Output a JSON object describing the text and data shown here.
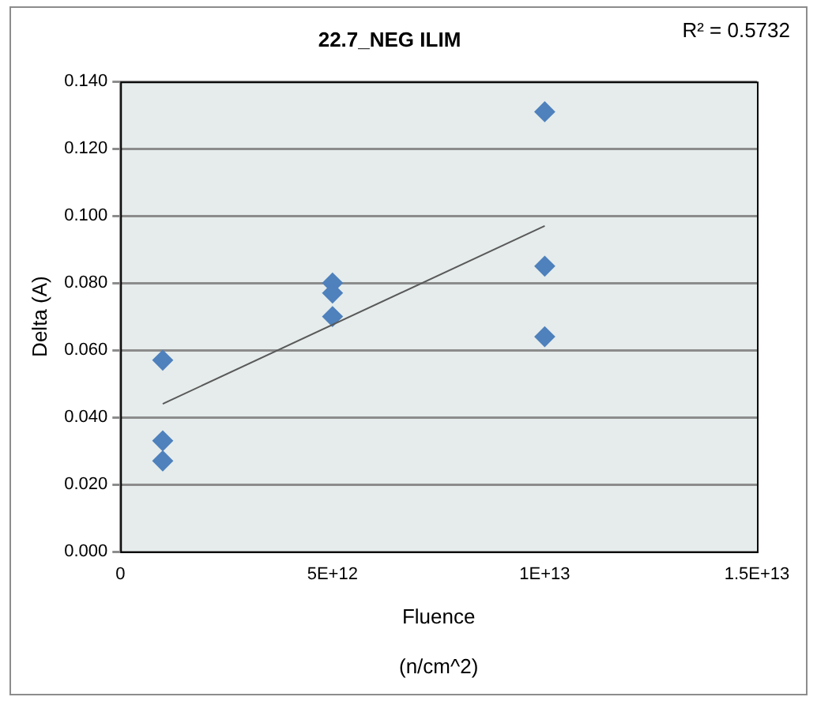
{
  "chart_data": {
    "type": "scatter",
    "title": "22.7_NEG ILIM",
    "xlabel": "Fluence\n\n(n/cm^2)",
    "ylabel": "Delta (A)",
    "annotations": [
      "R² = 0.5732"
    ],
    "x": [
      1000000000000.0,
      1000000000000.0,
      1000000000000.0,
      5000000000000.0,
      5000000000000.0,
      5000000000000.0,
      10000000000000.0,
      10000000000000.0,
      10000000000000.0
    ],
    "series": [
      {
        "color": "#4f81bd",
        "values": [
          0.057,
          0.033,
          0.027,
          0.08,
          0.077,
          0.07,
          0.131,
          0.085,
          0.064
        ]
      },
      {
        "type": "line",
        "color": "#595959",
        "marker": "none",
        "x": [
          1000000000000.0,
          10000000000000.0
        ],
        "values": [
          0.044,
          0.097
        ]
      }
    ],
    "xlim": [
      0,
      15000000000000.0
    ],
    "xticks": [
      0,
      {
        "value": 5000000000000.0,
        "label": "5E+12"
      },
      {
        "value": 10000000000000.0,
        "label": "1E+13"
      },
      {
        "value": 15000000000000.0,
        "label": "1.5E+13"
      }
    ],
    "ylim": [
      0,
      0.14
    ],
    "yticks": [
      {
        "value": 0,
        "label": "0.000"
      },
      {
        "value": 0.02,
        "label": "0.020"
      },
      {
        "value": 0.04,
        "label": "0.040"
      },
      {
        "value": 0.06,
        "label": "0.060"
      },
      {
        "value": 0.08,
        "label": "0.080"
      },
      {
        "value": 0.1,
        "label": "0.100"
      },
      {
        "value": 0.12,
        "label": "0.120"
      },
      {
        "value": 0.14,
        "label": "0.140"
      }
    ],
    "grid": "y",
    "legend": false,
    "marker": "diamond"
  }
}
